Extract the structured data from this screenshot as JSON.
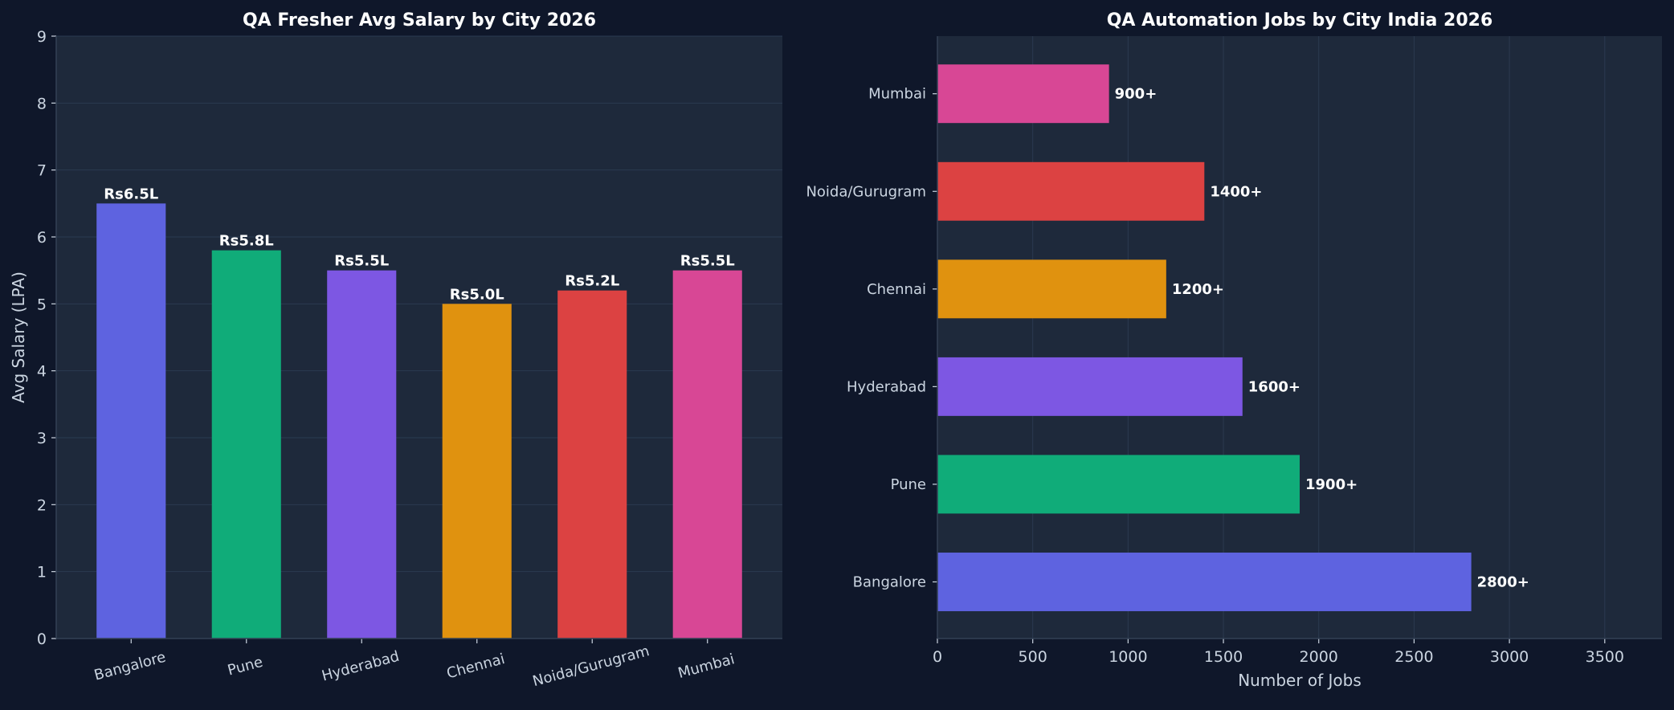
{
  "chart_data": [
    {
      "type": "bar",
      "orientation": "vertical",
      "title": "QA Fresher Avg Salary by City 2026",
      "xlabel": "",
      "ylabel": "Avg Salary (LPA)",
      "ylim": [
        0,
        9
      ],
      "yticks": [
        "0",
        "1",
        "2",
        "3",
        "4",
        "5",
        "6",
        "7",
        "8",
        "9"
      ],
      "grid": "horizontal",
      "categories": [
        "Bangalore",
        "Pune",
        "Hyderabad",
        "Chennai",
        "Noida/Gurugram",
        "Mumbai"
      ],
      "values": [
        6.5,
        5.8,
        5.5,
        5.0,
        5.2,
        5.5
      ],
      "labels": [
        "Rs6.5L",
        "Rs5.8L",
        "Rs5.5L",
        "Rs5.0L",
        "Rs5.2L",
        "Rs5.5L"
      ],
      "colors": [
        "#5e63e0",
        "#10ac79",
        "#7d57e3",
        "#e0920f",
        "#dc4242",
        "#d84795"
      ]
    },
    {
      "type": "bar",
      "orientation": "horizontal",
      "title": "QA Automation Jobs by City India 2026",
      "xlabel": "Number of Jobs",
      "ylabel": "",
      "xlim": [
        0,
        3800
      ],
      "xticks": [
        "0",
        "500",
        "1000",
        "1500",
        "2000",
        "2500",
        "3000",
        "3500"
      ],
      "grid": "vertical",
      "categories": [
        "Bangalore",
        "Pune",
        "Hyderabad",
        "Chennai",
        "Noida/Gurugram",
        "Mumbai"
      ],
      "values": [
        2800,
        1900,
        1600,
        1200,
        1400,
        900
      ],
      "labels": [
        "2800+",
        "1900+",
        "1600+",
        "1200+",
        "1400+",
        "900+"
      ],
      "colors": [
        "#5e63e0",
        "#10ac79",
        "#7d57e3",
        "#e0920f",
        "#dc4242",
        "#d84795"
      ]
    }
  ],
  "theme": {
    "figure_bg": "#0f172a",
    "axes_bg": "#1e293b",
    "grid": "#2b3a50",
    "spine": "#334155",
    "text": "#cbd5e1",
    "title": "#ffffff"
  }
}
